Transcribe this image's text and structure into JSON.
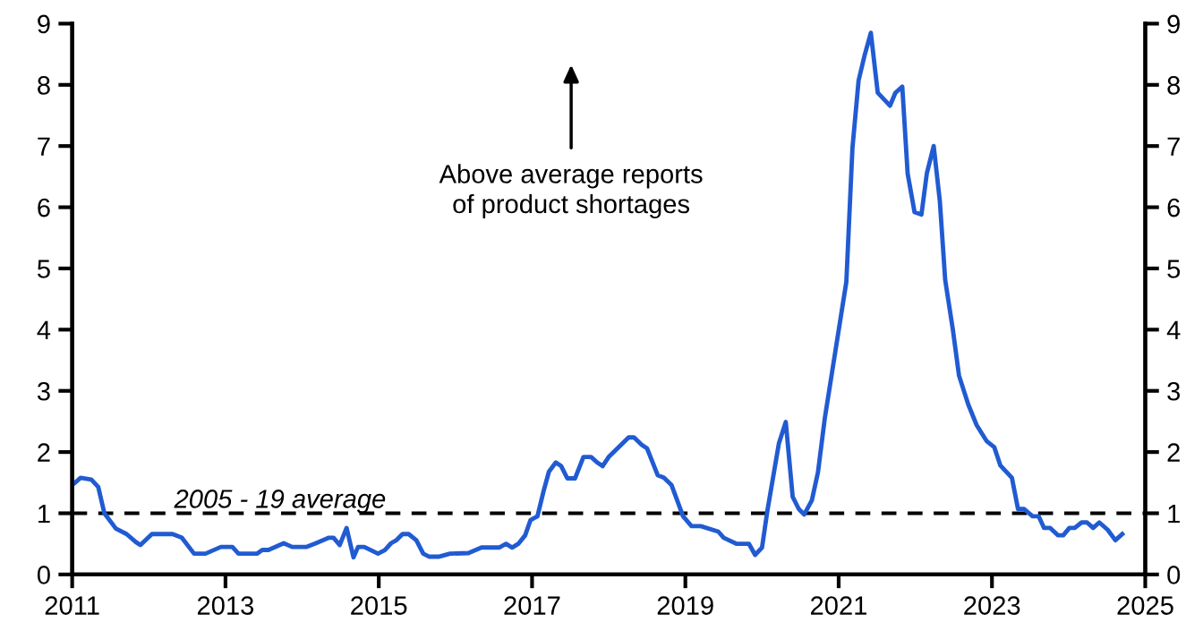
{
  "chart_data": {
    "type": "line",
    "x": [
      2011.0,
      2011.11,
      2011.25,
      2011.34,
      2011.42,
      2011.57,
      2011.71,
      2011.83,
      2011.89,
      2012.04,
      2012.31,
      2012.43,
      2012.59,
      2012.74,
      2012.94,
      2013.09,
      2013.17,
      2013.41,
      2013.48,
      2013.56,
      2013.76,
      2013.87,
      2014.06,
      2014.18,
      2014.35,
      2014.41,
      2014.49,
      2014.58,
      2014.67,
      2014.73,
      2014.81,
      2014.99,
      2015.08,
      2015.16,
      2015.23,
      2015.31,
      2015.39,
      2015.49,
      2015.58,
      2015.66,
      2015.78,
      2015.93,
      2016.17,
      2016.34,
      2016.57,
      2016.66,
      2016.74,
      2016.82,
      2016.91,
      2016.98,
      2017.07,
      2017.15,
      2017.22,
      2017.31,
      2017.38,
      2017.46,
      2017.56,
      2017.67,
      2017.77,
      2017.85,
      2017.92,
      2018.0,
      2018.26,
      2018.33,
      2018.43,
      2018.5,
      2018.64,
      2018.72,
      2018.82,
      2018.97,
      2019.08,
      2019.2,
      2019.43,
      2019.5,
      2019.67,
      2019.83,
      2019.91,
      2020.0,
      2020.07,
      2020.22,
      2020.31,
      2020.4,
      2020.48,
      2020.55,
      2020.65,
      2020.73,
      2020.82,
      2020.96,
      2021.1,
      2021.18,
      2021.26,
      2021.34,
      2021.42,
      2021.51,
      2021.67,
      2021.74,
      2021.83,
      2021.9,
      2021.99,
      2022.08,
      2022.15,
      2022.24,
      2022.32,
      2022.39,
      2022.49,
      2022.57,
      2022.69,
      2022.8,
      2022.93,
      2023.03,
      2023.11,
      2023.26,
      2023.34,
      2023.42,
      2023.53,
      2023.61,
      2023.68,
      2023.76,
      2023.86,
      2023.93,
      2024.01,
      2024.08,
      2024.17,
      2024.24,
      2024.32,
      2024.4,
      2024.51,
      2024.61,
      2024.7
    ],
    "series": [
      {
        "color": "#215bd2",
        "values": [
          1.46,
          1.58,
          1.55,
          1.43,
          1.0,
          0.75,
          0.66,
          0.53,
          0.48,
          0.66,
          0.66,
          0.6,
          0.34,
          0.34,
          0.45,
          0.45,
          0.34,
          0.34,
          0.4,
          0.4,
          0.51,
          0.45,
          0.45,
          0.51,
          0.6,
          0.6,
          0.48,
          0.76,
          0.28,
          0.45,
          0.45,
          0.34,
          0.4,
          0.51,
          0.56,
          0.66,
          0.66,
          0.56,
          0.34,
          0.29,
          0.29,
          0.34,
          0.35,
          0.44,
          0.44,
          0.5,
          0.44,
          0.5,
          0.64,
          0.89,
          0.95,
          1.36,
          1.68,
          1.83,
          1.77,
          1.57,
          1.57,
          1.92,
          1.92,
          1.83,
          1.77,
          1.92,
          2.24,
          2.24,
          2.12,
          2.06,
          1.62,
          1.58,
          1.46,
          0.95,
          0.79,
          0.79,
          0.7,
          0.6,
          0.5,
          0.5,
          0.32,
          0.44,
          1.04,
          2.14,
          2.49,
          1.27,
          1.07,
          0.98,
          1.21,
          1.67,
          2.56,
          3.67,
          4.78,
          6.97,
          8.07,
          8.49,
          8.85,
          7.87,
          7.66,
          7.87,
          7.97,
          6.55,
          5.92,
          5.88,
          6.55,
          7.0,
          6.1,
          4.81,
          4.0,
          3.25,
          2.78,
          2.44,
          2.18,
          2.08,
          1.78,
          1.58,
          1.07,
          1.07,
          0.95,
          0.95,
          0.76,
          0.76,
          0.64,
          0.64,
          0.76,
          0.76,
          0.85,
          0.85,
          0.76,
          0.85,
          0.73,
          0.56,
          0.66
        ]
      }
    ],
    "xlim": [
      2011,
      2025
    ],
    "xticks": [
      2011,
      2013,
      2015,
      2017,
      2019,
      2021,
      2023,
      2025
    ],
    "ylim": [
      0,
      9
    ],
    "yticks": [
      0,
      1,
      2,
      3,
      4,
      5,
      6,
      7,
      8,
      9
    ],
    "y2lim": [
      0,
      9
    ],
    "y2ticks": [
      0,
      1,
      2,
      3,
      4,
      5,
      6,
      7,
      8,
      9
    ],
    "ref_lines": [
      {
        "axis": "y",
        "value": 1,
        "label": "2005 - 19 average",
        "color": "#000000",
        "line_style": "dashed"
      }
    ],
    "annotations": [
      "Above average reports\nof product shortages"
    ],
    "grid": false,
    "marker": "none",
    "line_style": "solid"
  }
}
